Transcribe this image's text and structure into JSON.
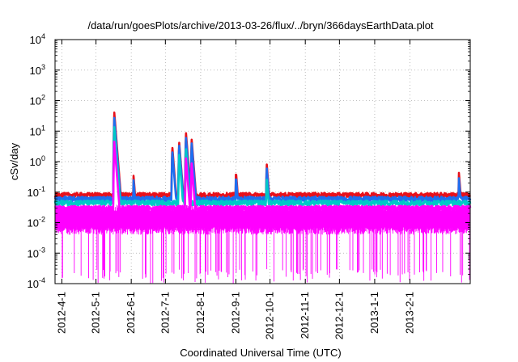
{
  "chart_data": {
    "type": "line",
    "title": "/data/run/goesPlots/archive/2013-03-26/flux/../bryn/366daysEarthData.plot",
    "xlabel": "Coordinated Universal Time (UTC)",
    "ylabel": "cSv/day",
    "yscale": "log",
    "ylim_exponents": [
      -4,
      4
    ],
    "y_ticks": [
      {
        "base": "10",
        "exp": "-4",
        "value": -4
      },
      {
        "base": "10",
        "exp": "-3",
        "value": -3
      },
      {
        "base": "10",
        "exp": "-2",
        "value": -2
      },
      {
        "base": "10",
        "exp": "-1",
        "value": -1
      },
      {
        "base": "10",
        "exp": "0",
        "value": 0
      },
      {
        "base": "10",
        "exp": "1",
        "value": 1
      },
      {
        "base": "10",
        "exp": "2",
        "value": 2
      },
      {
        "base": "10",
        "exp": "3",
        "value": 3
      },
      {
        "base": "10",
        "exp": "4",
        "value": 4
      }
    ],
    "x_range": [
      "2012-03-26",
      "2013-03-26"
    ],
    "x_ticks": [
      {
        "label": "2012-4-1",
        "date": "2012-04-01"
      },
      {
        "label": "2012-5-1",
        "date": "2012-05-01"
      },
      {
        "label": "2012-6-1",
        "date": "2012-06-01"
      },
      {
        "label": "2012-7-1",
        "date": "2012-07-01"
      },
      {
        "label": "2012-8-1",
        "date": "2012-08-01"
      },
      {
        "label": "2012-9-1",
        "date": "2012-09-01"
      },
      {
        "label": "2012-10-1",
        "date": "2012-10-01"
      },
      {
        "label": "2012-11-1",
        "date": "2012-11-01"
      },
      {
        "label": "2012-12-1",
        "date": "2012-12-01"
      },
      {
        "label": "2013-1-1",
        "date": "2013-01-01"
      },
      {
        "label": "2013-2-1",
        "date": "2013-02-01"
      }
    ],
    "grid": true,
    "legend": "none",
    "series": [
      {
        "color": "#e8101a",
        "baseline": 0.08,
        "events": [
          {
            "date": "2012-05-17",
            "peak": 45
          },
          {
            "date": "2012-06-03",
            "peak": 0.35
          },
          {
            "date": "2012-07-07",
            "peak": 3.5
          },
          {
            "date": "2012-07-13",
            "peak": 5
          },
          {
            "date": "2012-07-19",
            "peak": 10
          },
          {
            "date": "2012-07-24",
            "peak": 6
          },
          {
            "date": "2012-09-01",
            "peak": 0.5
          },
          {
            "date": "2012-09-28",
            "peak": 0.95
          },
          {
            "date": "2012-11-10",
            "peak": 0.12
          },
          {
            "date": "2013-03-16",
            "peak": 0.45
          }
        ]
      },
      {
        "color": "#1e6ef0",
        "baseline": 0.06,
        "events": [
          {
            "date": "2012-05-17",
            "peak": 30
          },
          {
            "date": "2012-06-03",
            "peak": 0.25
          },
          {
            "date": "2012-07-07",
            "peak": 2.5
          },
          {
            "date": "2012-07-13",
            "peak": 4
          },
          {
            "date": "2012-07-19",
            "peak": 7
          },
          {
            "date": "2012-07-24",
            "peak": 4.5
          },
          {
            "date": "2012-09-01",
            "peak": 0.35
          },
          {
            "date": "2012-09-28",
            "peak": 0.7
          },
          {
            "date": "2012-11-10",
            "peak": 0.09
          },
          {
            "date": "2013-03-16",
            "peak": 0.3
          }
        ]
      },
      {
        "color": "#00c8c8",
        "baseline": 0.045,
        "events": [
          {
            "date": "2012-05-17",
            "peak": 15
          },
          {
            "date": "2012-07-13",
            "peak": 2
          },
          {
            "date": "2012-07-19",
            "peak": 3
          },
          {
            "date": "2012-09-28",
            "peak": 0.3
          }
        ]
      },
      {
        "color": "#ff00ff",
        "baseline": 0.03,
        "events": [
          {
            "date": "2012-05-17",
            "peak": 5
          },
          {
            "date": "2012-07-19",
            "peak": 1.5
          },
          {
            "date": "2012-07-24",
            "peak": 1
          }
        ]
      }
    ],
    "magenta_noise": {
      "color": "#ff00ff",
      "top": 0.03,
      "floor": 0.005,
      "dropout_floor": 0.0001
    }
  }
}
